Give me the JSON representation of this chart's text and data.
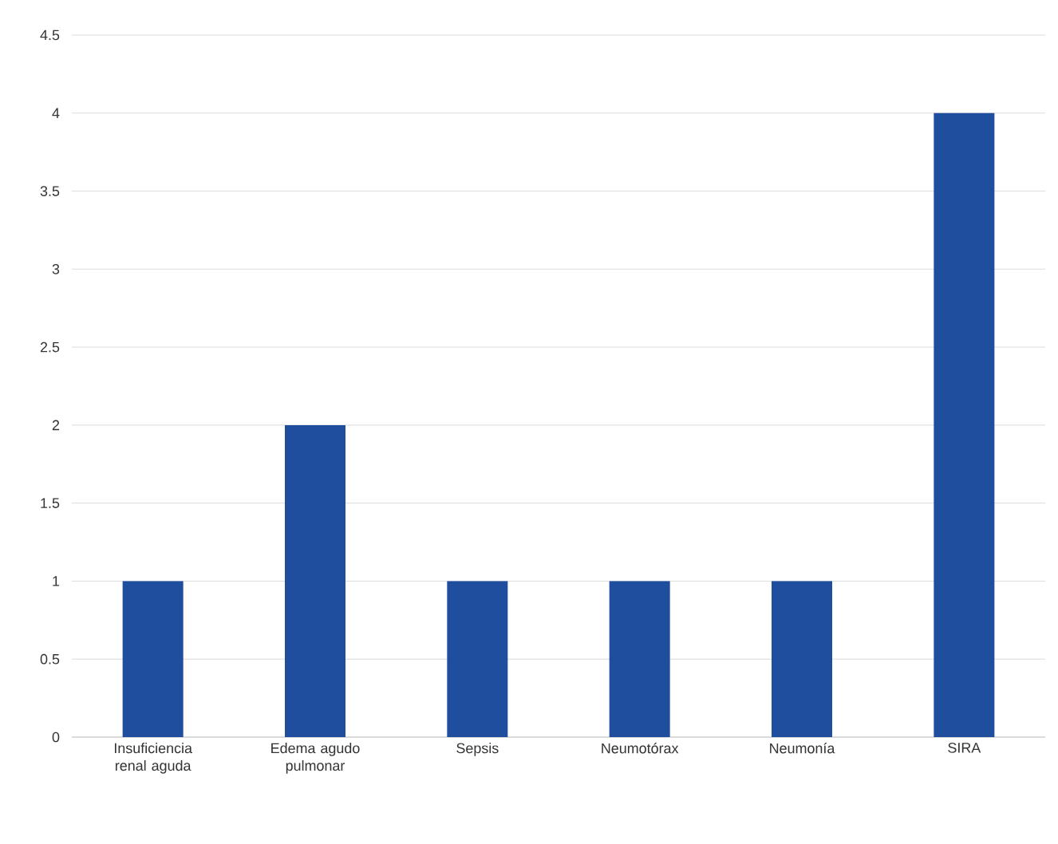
{
  "chart_data": {
    "type": "bar",
    "categories": [
      "Insuficiencia renal aguda",
      "Edema agudo pulmonar",
      "Sepsis",
      "Neumotórax",
      "Neumonía",
      "SIRA"
    ],
    "values": [
      1,
      2,
      1,
      1,
      1,
      4
    ],
    "color": "#1f4e9f",
    "ylim": [
      0,
      4.5
    ],
    "yticks": [
      0,
      0.5,
      1,
      1.5,
      2,
      2.5,
      3,
      3.5,
      4,
      4.5
    ],
    "grid": "y"
  }
}
